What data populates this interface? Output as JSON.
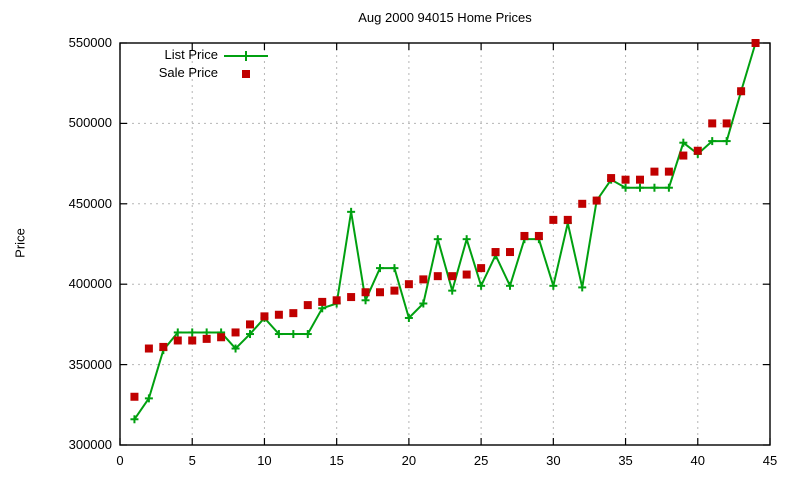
{
  "title": "Aug 2000 94015 Home Prices",
  "ylabel": "Price",
  "legend": [
    {
      "label": "List Price",
      "marker": "plus-line",
      "color": "#00a010"
    },
    {
      "label": "Sale Price",
      "marker": "filled-square",
      "color": "#c00000"
    }
  ],
  "colors": {
    "list_price": "#00a010",
    "sale_price": "#c00000",
    "grid": "#b5b5b5",
    "axis": "#000000",
    "background": "#ffffff",
    "text": "#000000"
  },
  "chart_data": {
    "type": "line",
    "title": "Aug 2000 94015 Home Prices",
    "xlabel": "",
    "ylabel": "Price",
    "xlim": [
      0,
      45
    ],
    "ylim": [
      300000,
      550000
    ],
    "x_ticks": [
      0,
      5,
      10,
      15,
      20,
      25,
      30,
      35,
      40,
      45
    ],
    "y_ticks": [
      300000,
      350000,
      400000,
      450000,
      500000,
      550000
    ],
    "grid": true,
    "legend_position": "top-left-inside",
    "x": [
      1,
      2,
      3,
      4,
      5,
      6,
      7,
      8,
      9,
      10,
      11,
      12,
      13,
      14,
      15,
      16,
      17,
      18,
      19,
      20,
      21,
      22,
      23,
      24,
      25,
      26,
      27,
      28,
      29,
      30,
      31,
      32,
      33,
      34,
      35,
      36,
      37,
      38,
      39,
      40,
      41,
      42,
      43,
      44
    ],
    "series": [
      {
        "name": "List Price",
        "style": "line-with-plus-markers",
        "color": "#00a010",
        "values": [
          316000,
          329000,
          359000,
          370000,
          370000,
          370000,
          370000,
          360000,
          369000,
          379000,
          369000,
          369000,
          369000,
          385000,
          388000,
          445000,
          390000,
          410000,
          410000,
          379000,
          388000,
          428000,
          396000,
          428000,
          399000,
          418000,
          399000,
          428000,
          428000,
          399000,
          438000,
          398000,
          452000,
          465000,
          460000,
          460000,
          460000,
          460000,
          488000,
          481000,
          489000,
          489000,
          520000,
          550000
        ]
      },
      {
        "name": "Sale Price",
        "style": "filled-squares",
        "color": "#c00000",
        "values": [
          330000,
          360000,
          361000,
          365000,
          365000,
          366000,
          367000,
          370000,
          375000,
          380000,
          381000,
          382000,
          387000,
          389000,
          390000,
          392000,
          395000,
          395000,
          396000,
          400000,
          403000,
          405000,
          405000,
          406000,
          410000,
          420000,
          420000,
          430000,
          430000,
          440000,
          440000,
          450000,
          452000,
          466000,
          465000,
          465000,
          470000,
          470000,
          480000,
          483000,
          500000,
          500000,
          520000,
          550000
        ]
      }
    ]
  }
}
